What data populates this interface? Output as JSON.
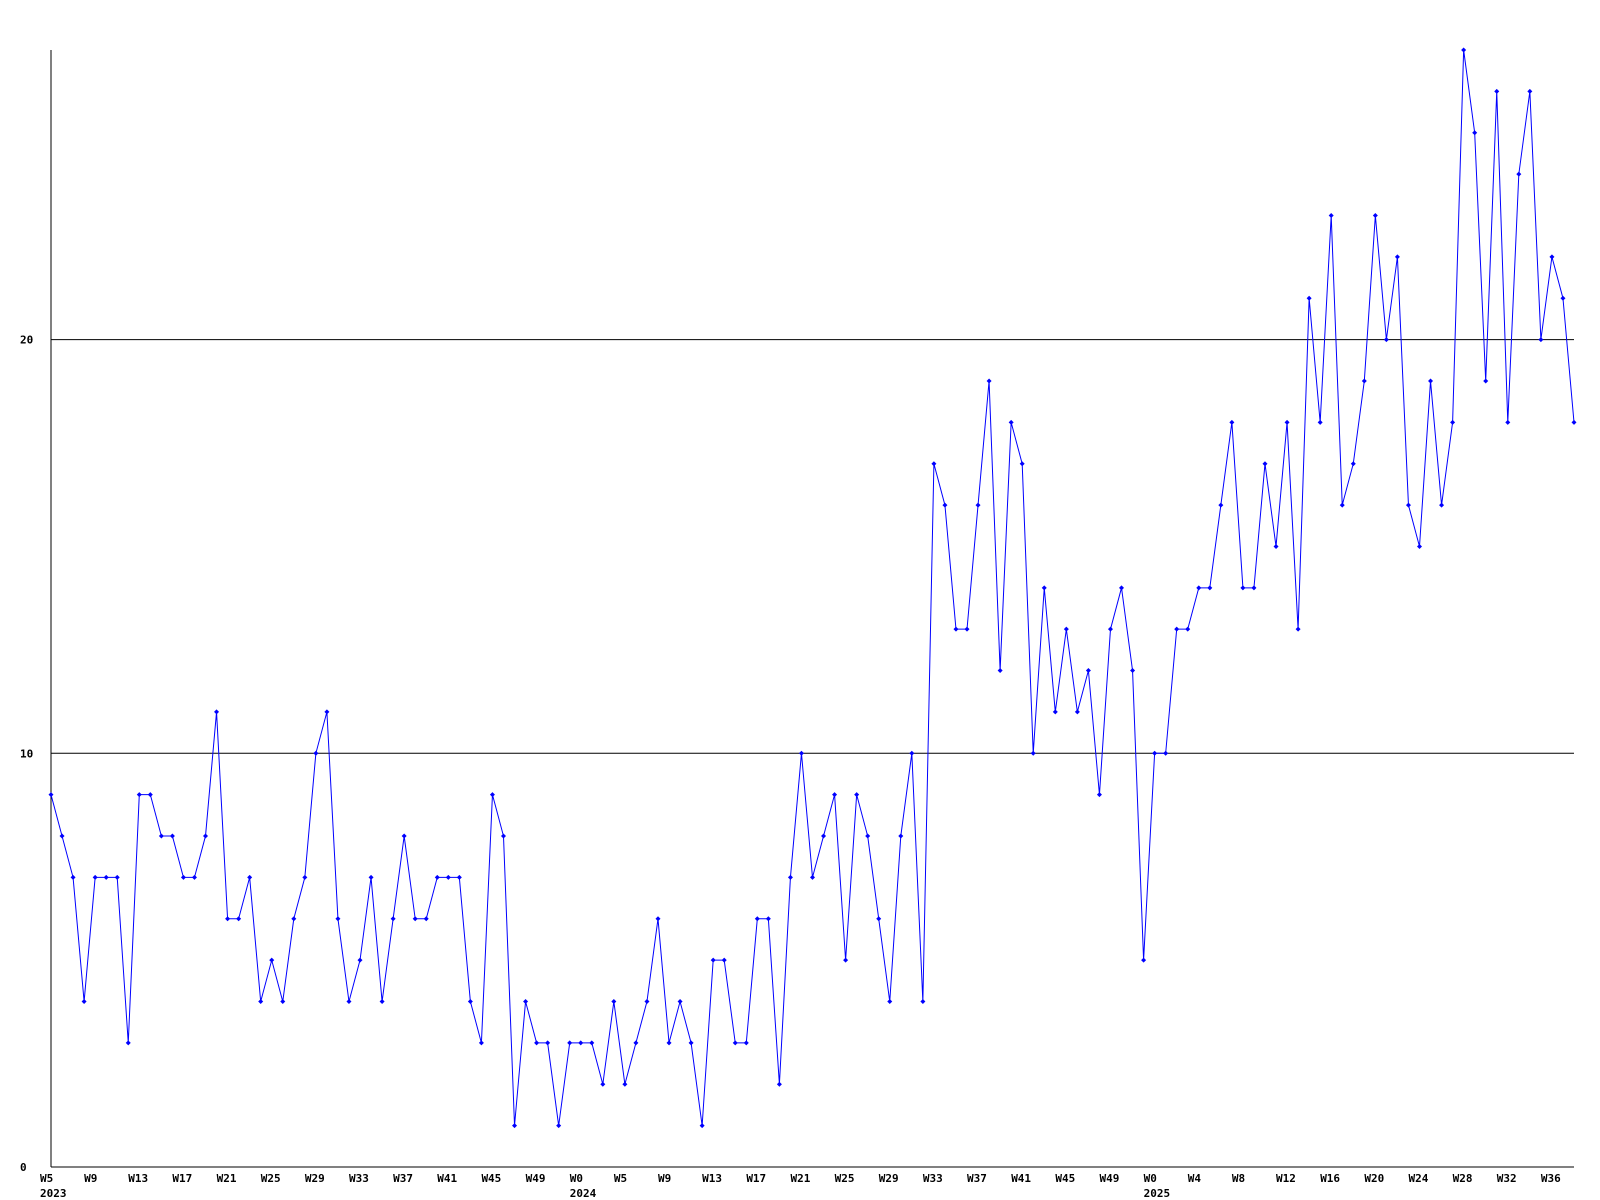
{
  "chart_data": {
    "type": "line",
    "categories": [
      "W5",
      null,
      null,
      null,
      "W9",
      null,
      null,
      null,
      "W13",
      null,
      null,
      null,
      "W17",
      null,
      null,
      null,
      "W21",
      null,
      null,
      null,
      "W25",
      null,
      null,
      null,
      "W29",
      null,
      null,
      null,
      "W33",
      null,
      null,
      null,
      "W37",
      null,
      null,
      null,
      "W41",
      null,
      null,
      null,
      "W45",
      null,
      null,
      null,
      "W49",
      null,
      null,
      null,
      "W0",
      null,
      null,
      null,
      "W5",
      null,
      null,
      null,
      "W9",
      null,
      null,
      null,
      "W13",
      null,
      null,
      null,
      "W17",
      null,
      null,
      null,
      "W21",
      null,
      null,
      null,
      "W25",
      null,
      null,
      null,
      "W29",
      null,
      null,
      null,
      "W33",
      null,
      null,
      null,
      "W37",
      null,
      null,
      null,
      "W41",
      null,
      null,
      null,
      "W45",
      null,
      null,
      null,
      "W49",
      null,
      null,
      null,
      "W0",
      null,
      null,
      null,
      "W4",
      null,
      null,
      null,
      "W8",
      null,
      null,
      null,
      "W12",
      null,
      null,
      null,
      "W16",
      null,
      null,
      null,
      "W20",
      null,
      null,
      null,
      "W24",
      null,
      null,
      null,
      "W28",
      null,
      null,
      null,
      "W32",
      null,
      null,
      null,
      "W36",
      null,
      null
    ],
    "year_labels": [
      {
        "category_index": 0,
        "label": "2023"
      },
      {
        "category_index": 48,
        "label": "2024"
      },
      {
        "category_index": 100,
        "label": "2025"
      }
    ],
    "series": [
      {
        "color": "#0000ff",
        "values": [
          9,
          8,
          7,
          4,
          7,
          7,
          7,
          3,
          9,
          9,
          8,
          8,
          7,
          7,
          8,
          11,
          6,
          6,
          7,
          4,
          5,
          4,
          6,
          7,
          10,
          11,
          6,
          4,
          5,
          7,
          4,
          6,
          8,
          6,
          6,
          7,
          7,
          7,
          4,
          3,
          9,
          8,
          1,
          4,
          3,
          3,
          1,
          3,
          3,
          3,
          2,
          4,
          2,
          3,
          4,
          6,
          3,
          4,
          3,
          1,
          5,
          5,
          3,
          3,
          6,
          6,
          2,
          7,
          10,
          7,
          8,
          9,
          5,
          9,
          8,
          6,
          4,
          8,
          10,
          4,
          17,
          16,
          13,
          13,
          16,
          19,
          12,
          18,
          17,
          10,
          14,
          11,
          13,
          11,
          12,
          9,
          13,
          14,
          12,
          5,
          10,
          10,
          13,
          13,
          14,
          14,
          16,
          18,
          14,
          14,
          17,
          15,
          18,
          13,
          21,
          18,
          23,
          16,
          17,
          19,
          23,
          20,
          22,
          16,
          15,
          19,
          16,
          18,
          27,
          25,
          19,
          26,
          18,
          24,
          26,
          20,
          22,
          21,
          18
        ]
      }
    ],
    "ylim": [
      0,
      27
    ],
    "yticks": [
      0,
      10,
      20
    ],
    "grid": true
  }
}
